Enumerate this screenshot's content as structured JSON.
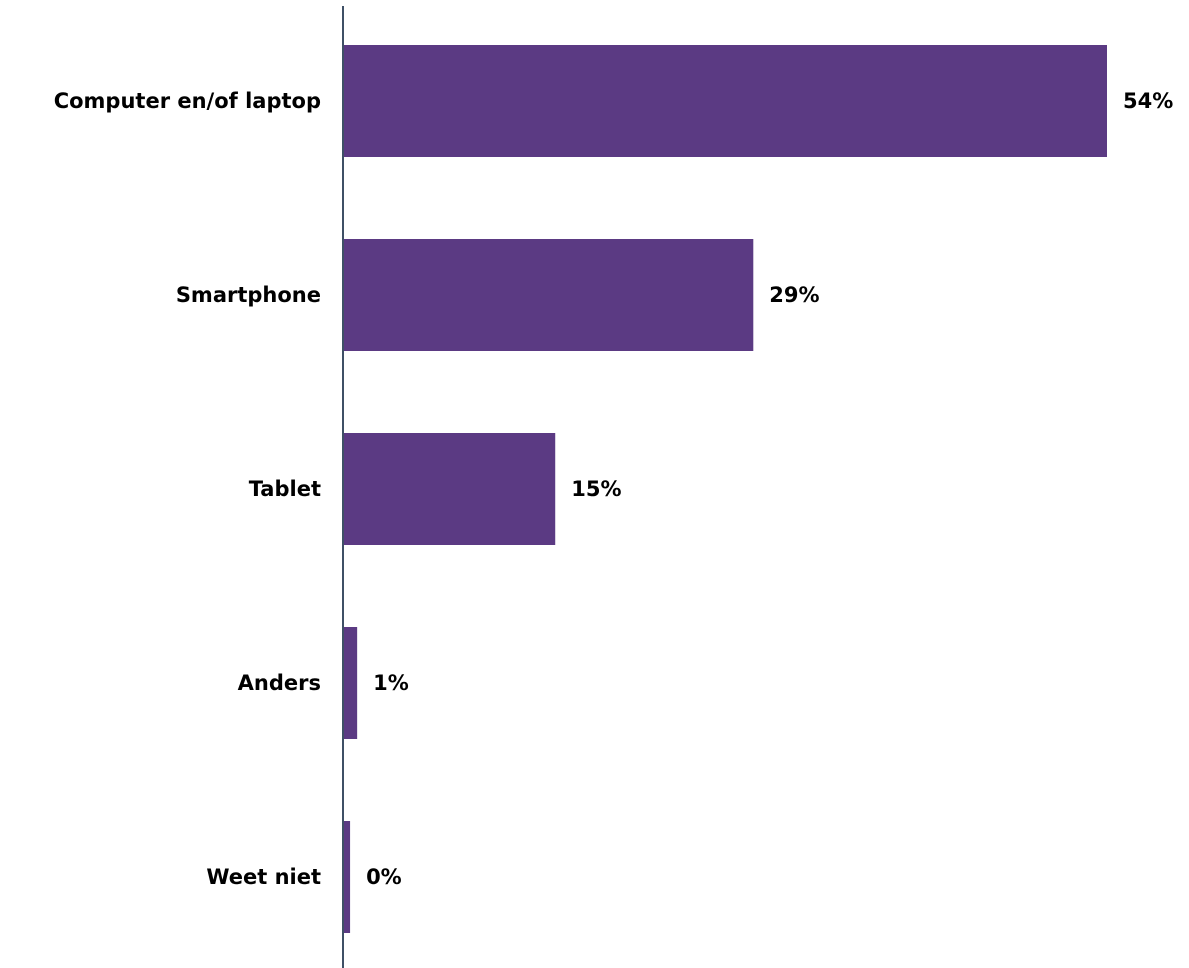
{
  "chart_data": {
    "type": "bar",
    "orientation": "horizontal",
    "categories": [
      "Computer en/of laptop",
      "Smartphone",
      "Tablet",
      "Anders",
      "Weet niet"
    ],
    "values": [
      54,
      29,
      15,
      1,
      0.5
    ],
    "value_labels": [
      "54%",
      "29%",
      "15%",
      "1%",
      "0%"
    ],
    "title": "",
    "xlabel": "",
    "ylabel": "",
    "xlim": [
      0,
      54
    ],
    "grid": false,
    "legend": "none",
    "colors": {
      "bar": "#5b3a83",
      "axis": "#3f5066",
      "text": "#000000"
    }
  }
}
